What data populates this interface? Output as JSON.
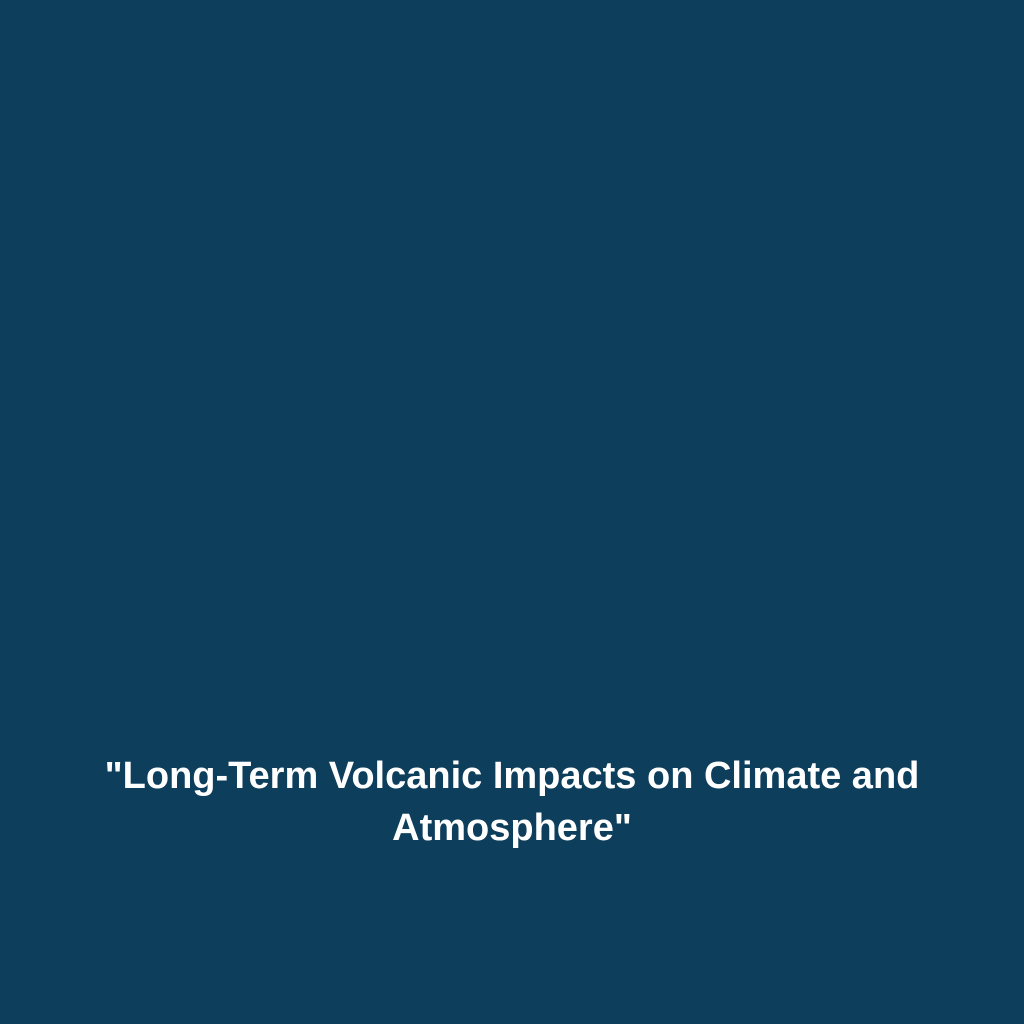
{
  "slide": {
    "background_color": "#0d3e5c",
    "text_color": "#ffffff",
    "title": "\"Long-Term Volcanic Impacts on Climate and Atmosphere\"",
    "title_fontsize": 38,
    "title_fontweight": "bold",
    "title_align": "center"
  }
}
